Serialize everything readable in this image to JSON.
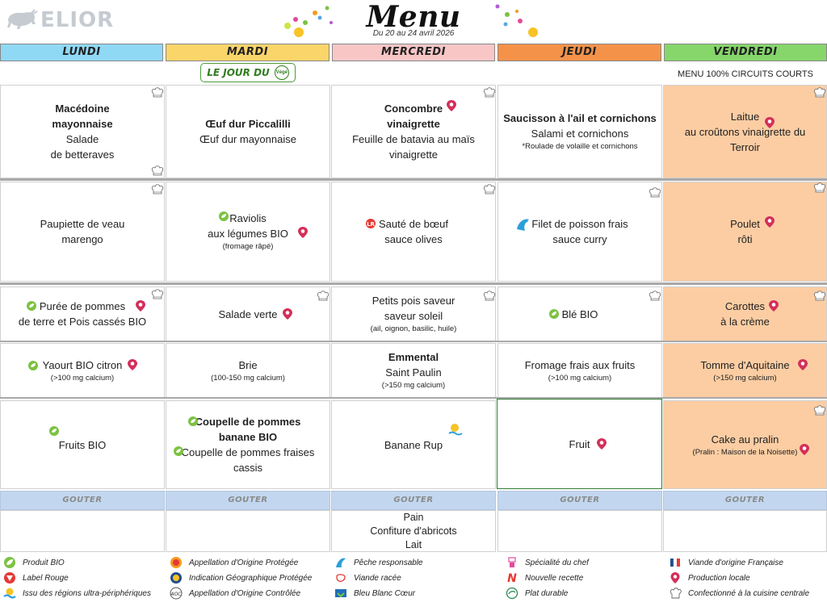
{
  "brand": "ELIOR",
  "title": "Menu",
  "subtitle": "Du 20 au 24 avril 2026",
  "days": [
    "LUNDI",
    "MARDI",
    "MERCREDI",
    "JEUDI",
    "VENDREDI"
  ],
  "veggie_label": "LE JOUR DU",
  "veggie_badge": "Végé",
  "friday_note": "MENU 100% CIRCUITS COURTS",
  "rows": {
    "entree": {
      "lundi": {
        "l1": "Macédoine",
        "l2": "mayonnaise",
        "l3": "Salade",
        "l4": "de betteraves"
      },
      "mardi": {
        "l1": "Œuf dur Piccalilli",
        "l2": "Œuf dur mayonnaise"
      },
      "mercredi": {
        "l1": "Concombre",
        "l2": "vinaigrette",
        "l3": "Feuille de batavia au maïs",
        "l4": "vinaigrette"
      },
      "jeudi": {
        "l1": "Saucisson à l'ail et cornichons",
        "l2": "Salami et cornichons",
        "l3": "*Roulade de volaille et cornichons"
      },
      "vendredi": {
        "l1": "Laitue",
        "l2": "au croûtons vinaigrette du",
        "l3": "Terroir"
      }
    },
    "plat": {
      "lundi": {
        "l1": "Paupiette de veau",
        "l2": "marengo"
      },
      "mardi": {
        "l1": "Raviolis",
        "l2": "aux légumes BIO",
        "l3": "(fromage râpé)"
      },
      "mercredi": {
        "l1": "Sauté de bœuf",
        "l2": "sauce olives"
      },
      "jeudi": {
        "l1": "Filet de poisson frais",
        "l2": "sauce curry"
      },
      "vendredi": {
        "l1": "Poulet",
        "l2": "rôti"
      }
    },
    "garniture": {
      "lundi": {
        "l1": "Purée de pommes",
        "l2": "de terre et Pois cassés BIO"
      },
      "mardi": {
        "l1": "Salade verte"
      },
      "mercredi": {
        "l1": "Petits pois saveur",
        "l2": "saveur soleil",
        "l3": "(ail, oignon, basilic, huile)"
      },
      "jeudi": {
        "l1": "Blé BIO"
      },
      "vendredi": {
        "l1": "Carottes",
        "l2": "à la crème"
      }
    },
    "laitage": {
      "lundi": {
        "l1": "Yaourt BIO citron",
        "l2": "(>100 mg calcium)"
      },
      "mardi": {
        "l1": "Brie",
        "l2": "(100-150 mg calcium)"
      },
      "mercredi": {
        "l1": "Emmental",
        "l2": "Saint Paulin",
        "l3": "(>150 mg calcium)"
      },
      "jeudi": {
        "l1": "Fromage frais aux fruits",
        "l2": "(>100 mg calcium)"
      },
      "vendredi": {
        "l1": "Tomme d'Aquitaine",
        "l2": "(>150 mg calcium)"
      }
    },
    "dessert": {
      "lundi": {
        "l1": "Fruits BIO"
      },
      "mardi": {
        "l1": "Coupelle de pommes",
        "l2": "banane BIO",
        "l3": "Coupelle de pommes fraises",
        "l4": "cassis"
      },
      "mercredi": {
        "l1": "Banane Rup"
      },
      "jeudi": {
        "l1": "Fruit"
      },
      "vendredi": {
        "l1": "Cake au pralin",
        "l2": "(Pralin : Maison de la Noisette)"
      }
    }
  },
  "gouter_label": "GOUTER",
  "gouter": {
    "mercredi": [
      "Pain",
      "Confiture d'abricots",
      "Lait"
    ]
  },
  "legend": [
    [
      "Produit BIO",
      "Label Rouge",
      "Issu des régions ultra-périphériques"
    ],
    [
      "Appellation d'Origine Protégée",
      "Indication Géographique Protégée",
      "Appellation d'Origine Contrôlée"
    ],
    [
      "Pêche responsable",
      "Viande racée",
      "Bleu Blanc Cœur"
    ],
    [
      "Spécialité du chef",
      "Nouvelle recette",
      "Plat durable"
    ],
    [
      "Viande d'origine Française",
      "Production locale",
      "Confectionné à la cuisine centrale"
    ]
  ],
  "colors": {
    "lundi": "#8fd9f5",
    "mardi": "#fad56a",
    "mercredi": "#f9c6c6",
    "jeudi": "#f5924a",
    "vendredi": "#86d66b",
    "vendredi_cells": "#fccda3",
    "gouter": "#c2d7ef",
    "bio": "#7cc242",
    "local_pin": "#d32f5a"
  }
}
